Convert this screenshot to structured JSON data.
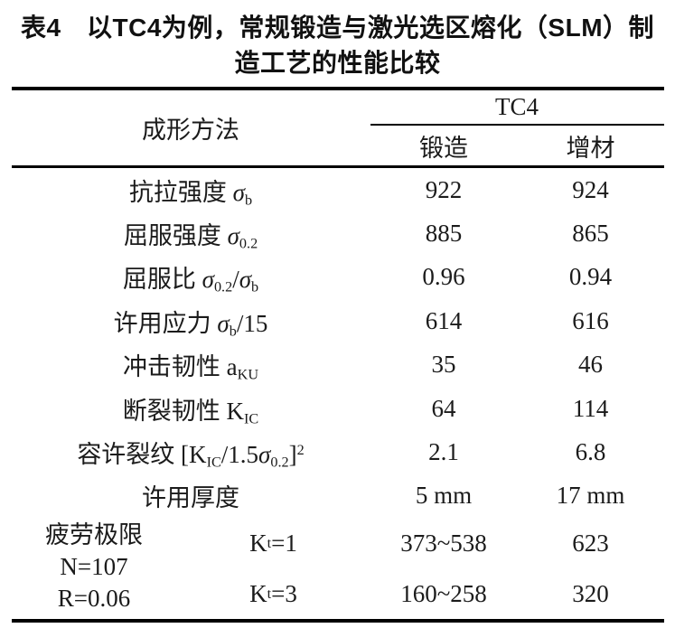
{
  "title": {
    "line1": "表4　以TC4为例，常规锻造与激光选区熔化（SLM）制",
    "line2": "造工艺的性能比较"
  },
  "table": {
    "corner_label": "成形方法",
    "group_header": "TC4",
    "columns": [
      "锻造",
      "增材"
    ],
    "rows": [
      {
        "label": [
          {
            "t": "抗拉强度 "
          },
          {
            "t": "σ",
            "i": true
          },
          {
            "t": "b",
            "s": "sub"
          }
        ],
        "forging": "922",
        "additive": "924"
      },
      {
        "label": [
          {
            "t": "屈服强度 "
          },
          {
            "t": "σ",
            "i": true
          },
          {
            "t": "0.2",
            "s": "sub"
          }
        ],
        "forging": "885",
        "additive": "865"
      },
      {
        "label": [
          {
            "t": "屈服比 "
          },
          {
            "t": "σ",
            "i": true
          },
          {
            "t": "0.2",
            "s": "sub"
          },
          {
            "t": "/"
          },
          {
            "t": "σ",
            "i": true
          },
          {
            "t": "b",
            "s": "sub"
          }
        ],
        "forging": "0.96",
        "additive": "0.94"
      },
      {
        "label": [
          {
            "t": "许用应力 "
          },
          {
            "t": "σ",
            "i": true
          },
          {
            "t": "b",
            "s": "sub"
          },
          {
            "t": "/15"
          }
        ],
        "forging": "614",
        "additive": "616"
      },
      {
        "label": [
          {
            "t": "冲击韧性 a"
          },
          {
            "t": "KU",
            "s": "sub"
          }
        ],
        "forging": "35",
        "additive": "46"
      },
      {
        "label": [
          {
            "t": "断裂韧性 K"
          },
          {
            "t": "IC",
            "s": "sub"
          }
        ],
        "forging": "64",
        "additive": "114"
      },
      {
        "label": [
          {
            "t": "容许裂纹 [K"
          },
          {
            "t": "IC",
            "s": "sub"
          },
          {
            "t": "/1.5"
          },
          {
            "t": "σ",
            "i": true
          },
          {
            "t": "0.2",
            "s": "sub"
          },
          {
            "t": "]"
          },
          {
            "t": "2",
            "s": "sup"
          }
        ],
        "forging": "2.1",
        "additive": "6.8"
      },
      {
        "label": [
          {
            "t": "许用厚度"
          }
        ],
        "forging": "5 mm",
        "additive": "17 mm"
      }
    ],
    "fatigue": {
      "label_lines": [
        "疲劳极限",
        "N=107",
        "R=0.06"
      ],
      "subrows": [
        {
          "condition": [
            {
              "t": "K"
            },
            {
              "t": "t",
              "s": "sub"
            },
            {
              "t": "=1"
            }
          ],
          "forging": "373~538",
          "additive": "623"
        },
        {
          "condition": [
            {
              "t": "K"
            },
            {
              "t": "t",
              "s": "sub"
            },
            {
              "t": "=3"
            }
          ],
          "forging": "160~258",
          "additive": "320"
        }
      ]
    }
  },
  "colors": {
    "text": "#1b1b1b",
    "rule": "#000000",
    "background": "#ffffff"
  }
}
